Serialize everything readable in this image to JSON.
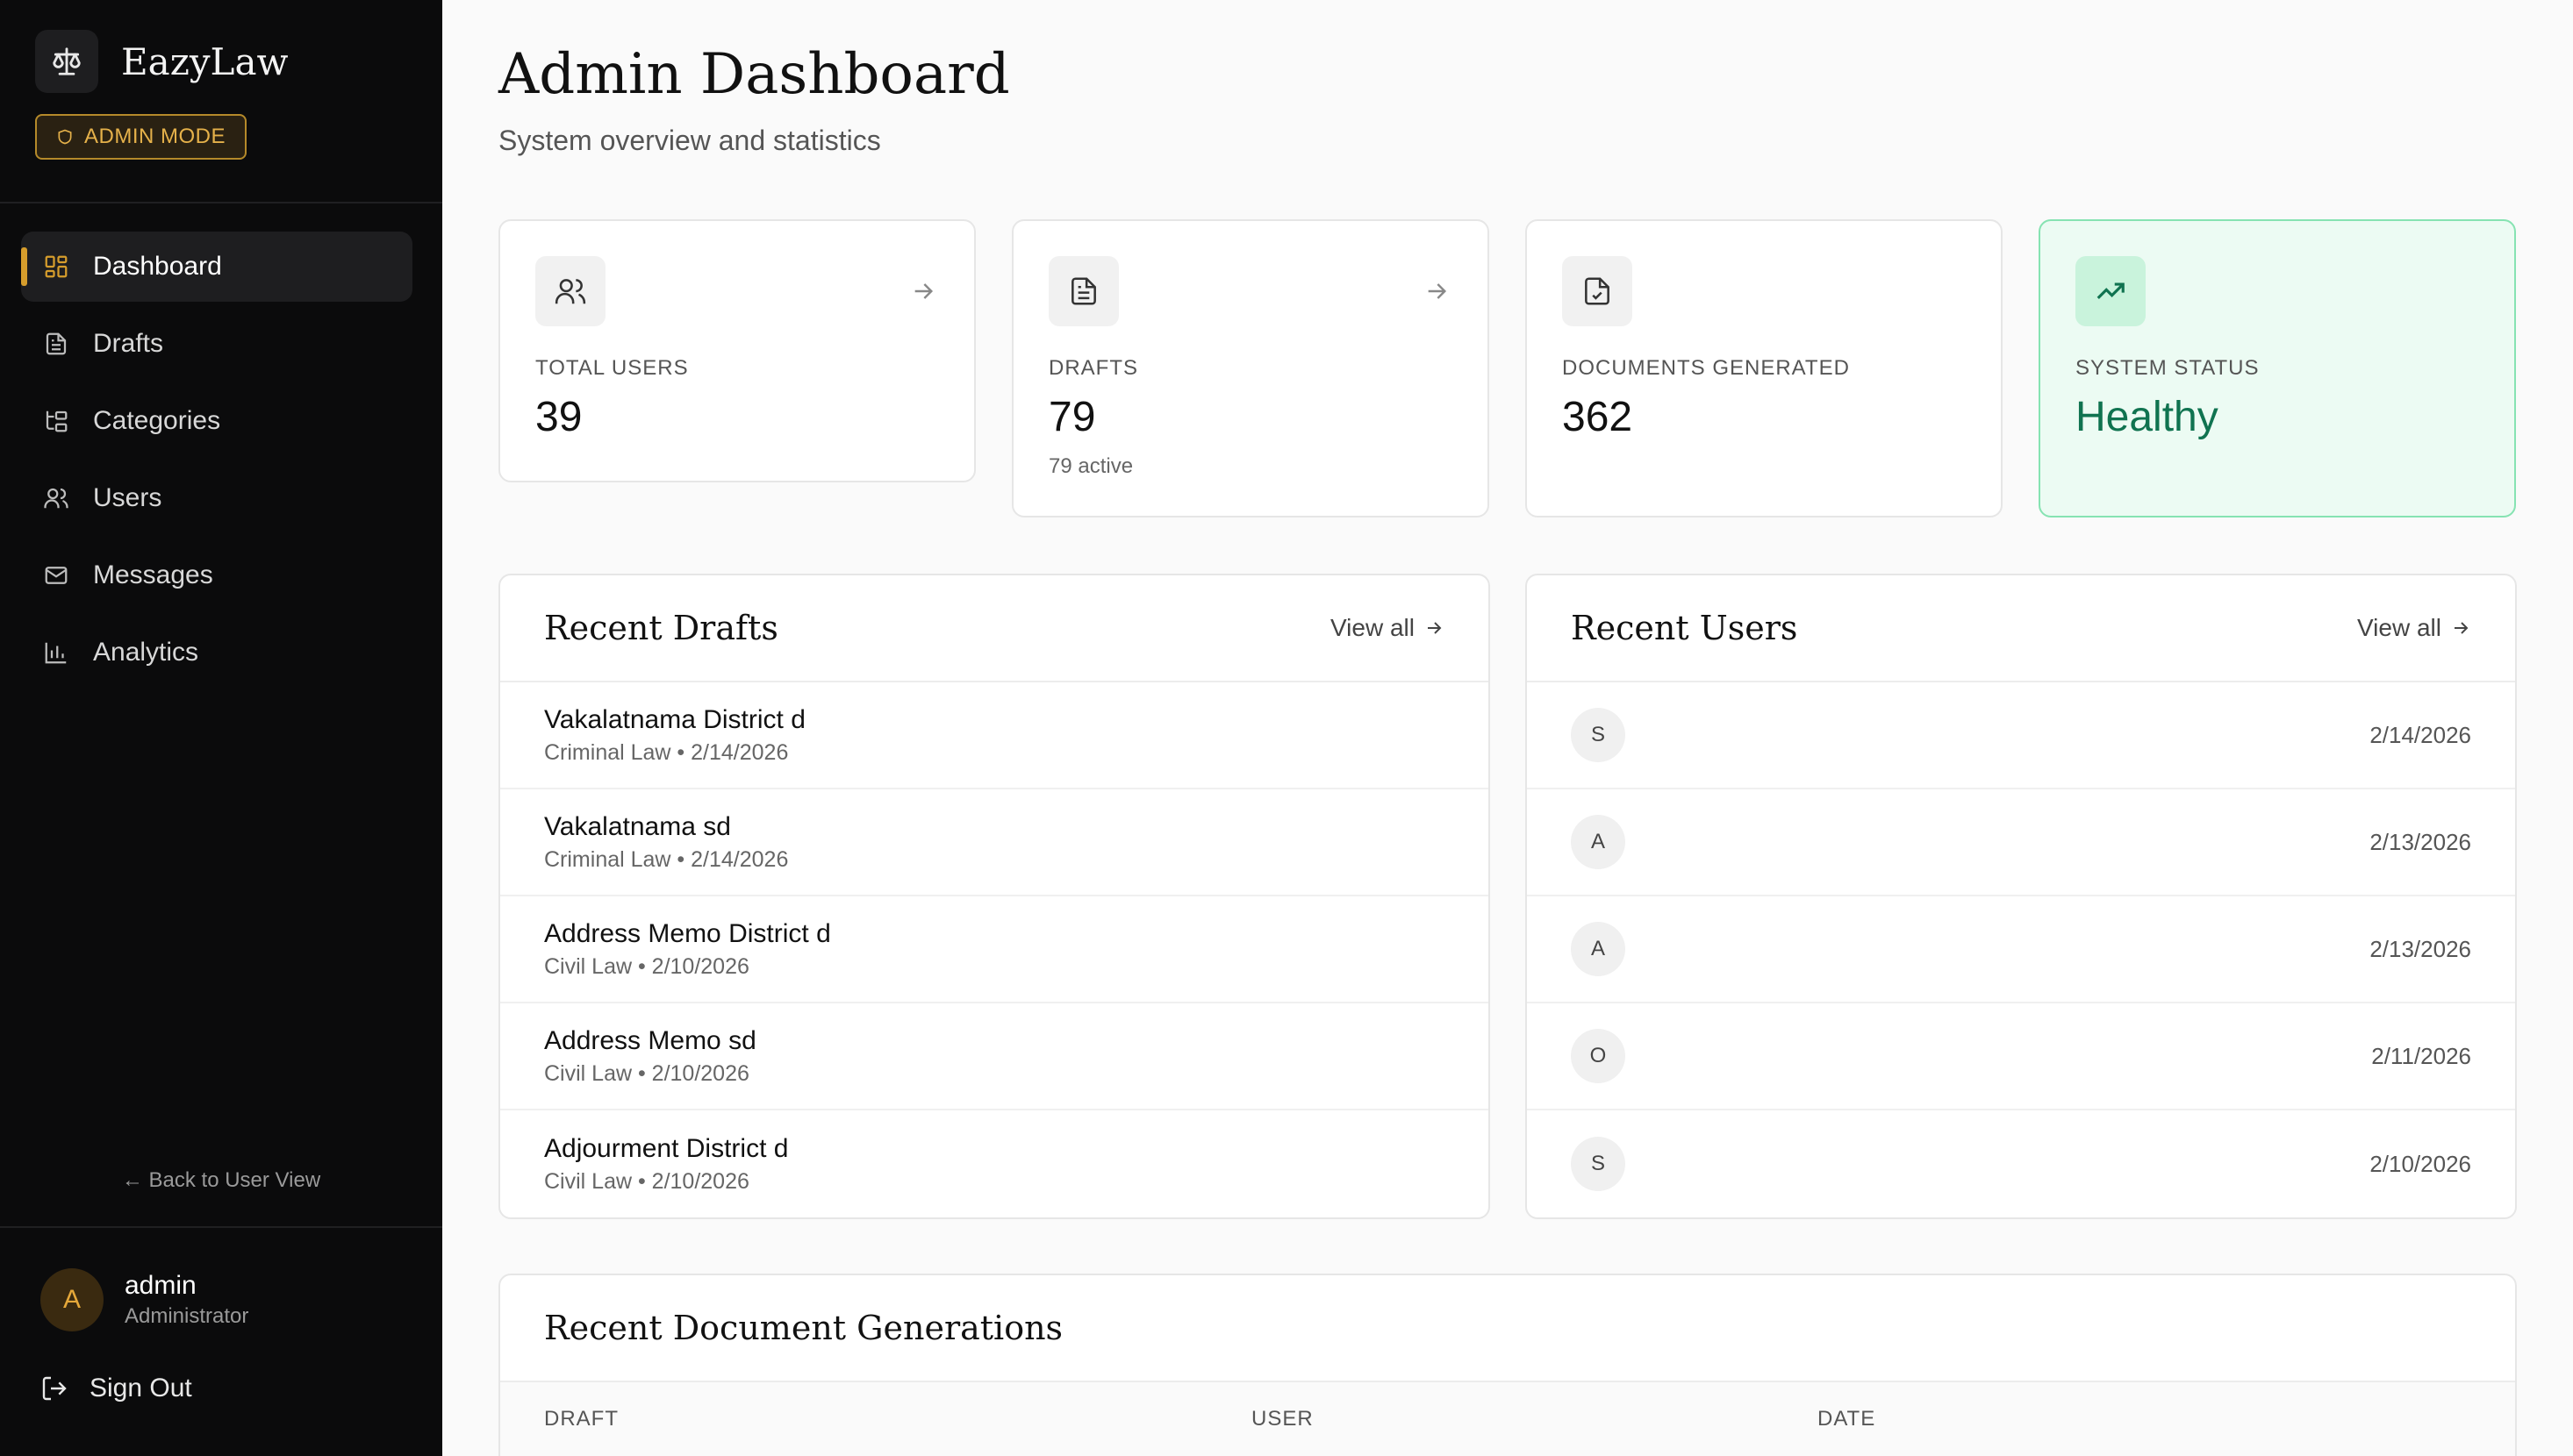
{
  "brand": {
    "name": "EazyLaw",
    "mode_badge": "ADMIN MODE"
  },
  "nav": [
    {
      "label": "Dashboard",
      "icon": "dashboard-grid-icon",
      "active": true
    },
    {
      "label": "Drafts",
      "icon": "document-icon"
    },
    {
      "label": "Categories",
      "icon": "folder-tree-icon"
    },
    {
      "label": "Users",
      "icon": "users-icon"
    },
    {
      "label": "Messages",
      "icon": "mail-icon"
    },
    {
      "label": "Analytics",
      "icon": "bar-chart-icon"
    }
  ],
  "back_link": "← Back to User View",
  "profile": {
    "initial": "A",
    "name": "admin",
    "role": "Administrator"
  },
  "signout_label": "Sign Out",
  "header": {
    "title": "Admin Dashboard",
    "subtitle": "System overview and statistics"
  },
  "stats": [
    {
      "label": "TOTAL USERS",
      "value": "39",
      "icon": "users-icon"
    },
    {
      "label": "DRAFTS",
      "value": "79",
      "sub": "79 active",
      "icon": "document-icon"
    },
    {
      "label": "DOCUMENTS GENERATED",
      "value": "362",
      "icon": "file-check-icon"
    },
    {
      "label": "SYSTEM STATUS",
      "value": "Healthy",
      "icon": "trending-up-icon"
    }
  ],
  "recent_drafts": {
    "title": "Recent Drafts",
    "view_all": "View all",
    "items": [
      {
        "title": "Vakalatnama District d",
        "meta": "Criminal Law • 2/14/2026"
      },
      {
        "title": "Vakalatnama sd",
        "meta": "Criminal Law • 2/14/2026"
      },
      {
        "title": "Address Memo District d",
        "meta": "Civil Law • 2/10/2026"
      },
      {
        "title": "Address Memo sd",
        "meta": "Civil Law • 2/10/2026"
      },
      {
        "title": "Adjourment District d",
        "meta": "Civil Law • 2/10/2026"
      }
    ]
  },
  "recent_users": {
    "title": "Recent Users",
    "view_all": "View all",
    "items": [
      {
        "initial": "S",
        "name": "",
        "email": "",
        "date": "2/14/2026"
      },
      {
        "initial": "A",
        "name": "",
        "email": "",
        "date": "2/13/2026"
      },
      {
        "initial": "A",
        "name": "",
        "email": "",
        "date": "2/13/2026"
      },
      {
        "initial": "O",
        "name": "",
        "email": "",
        "date": "2/11/2026"
      },
      {
        "initial": "S",
        "name": "",
        "email": "",
        "date": "2/10/2026"
      }
    ]
  },
  "recent_generations": {
    "title": "Recent Document Generations",
    "columns": [
      "DRAFT",
      "USER",
      "DATE"
    ]
  },
  "colors": {
    "accent": "#d69d2c",
    "healthy": "#107350",
    "sidebar_bg": "#0b0b0c"
  }
}
